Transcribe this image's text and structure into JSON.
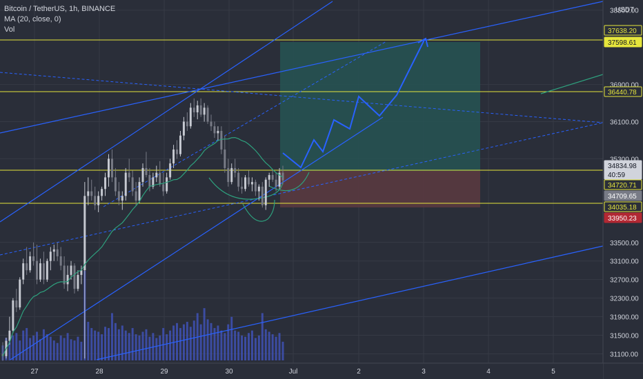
{
  "legend": {
    "symbol": "Bitcoin / TetherUS, 1h, BINANCE",
    "ma": "MA (20, close, 0)",
    "vol": "Vol"
  },
  "currency": "USDT",
  "colors": {
    "background": "#2a2e39",
    "grid": "#363a45",
    "axis_text": "#d1d4dc",
    "candle_up": "#c6c9d1",
    "candle_down": "#787b86",
    "volume": "#3f51b5",
    "ma": "#2ea17e",
    "trend_line": "#2962ff",
    "horizontal_line": "#e6e63c",
    "profit_zone": "#265453",
    "loss_zone": "#5c3a41"
  },
  "chart_data": {
    "type": "candlestick",
    "symbol": "BTCUSDT",
    "interval": "1h",
    "y_ticks": [
      38500,
      36900,
      36100,
      35300,
      33500,
      33100,
      32700,
      32300,
      31900,
      31500,
      31100
    ],
    "x_ticks": [
      "27",
      "28",
      "29",
      "30",
      "Jul",
      "2",
      "3",
      "4",
      "5"
    ],
    "ylim": [
      30900,
      38600
    ],
    "price_tags": [
      {
        "value": "37638.20",
        "style": "yellow-outline"
      },
      {
        "value": "37598.61",
        "style": "yellow-fill"
      },
      {
        "value": "36440.78",
        "style": "yellow-outline"
      },
      {
        "value": "34834.98",
        "style": "white"
      },
      {
        "value": "40:59",
        "style": "white"
      },
      {
        "value": "34720.71",
        "style": "yellow-outline"
      },
      {
        "value": "34709.65",
        "style": "grey"
      },
      {
        "value": "34035.18",
        "style": "yellow-outline"
      },
      {
        "value": "33950.23",
        "style": "red"
      }
    ],
    "horizontal_levels": [
      37598.61,
      36440.78,
      34720.71,
      34035.18
    ],
    "long_position": {
      "entry": 34720.71,
      "target": 37638.2,
      "stop": 33950.23
    },
    "candles": [
      [
        31100,
        31350,
        30950,
        31050
      ],
      [
        31050,
        31450,
        31000,
        31380
      ],
      [
        31380,
        31900,
        31300,
        31600
      ],
      [
        31600,
        32300,
        31550,
        32250
      ],
      [
        32250,
        32500,
        32000,
        32100
      ],
      [
        32100,
        32750,
        32050,
        32700
      ],
      [
        32700,
        33150,
        32600,
        33050
      ],
      [
        33050,
        33400,
        32800,
        32900
      ],
      [
        32900,
        33300,
        32850,
        33200
      ],
      [
        33200,
        33500,
        33000,
        33100
      ],
      [
        33100,
        33450,
        32600,
        32700
      ],
      [
        32700,
        33150,
        32650,
        33050
      ],
      [
        33050,
        33300,
        32600,
        32700
      ],
      [
        32700,
        33150,
        32650,
        33100
      ],
      [
        33100,
        33400,
        32900,
        33300
      ],
      [
        33300,
        33450,
        33100,
        33350
      ],
      [
        33350,
        33500,
        33100,
        33200
      ],
      [
        33200,
        33400,
        32900,
        33000
      ],
      [
        33000,
        33200,
        32500,
        32600
      ],
      [
        32600,
        33000,
        32450,
        32800
      ],
      [
        32800,
        33100,
        32700,
        33000
      ],
      [
        33000,
        33050,
        32400,
        32500
      ],
      [
        32500,
        32900,
        32450,
        32800
      ],
      [
        32800,
        33000,
        32600,
        32900
      ],
      [
        32900,
        34800,
        31000,
        34500
      ],
      [
        34500,
        34900,
        34300,
        34600
      ],
      [
        34600,
        34850,
        34400,
        34500
      ],
      [
        34500,
        34700,
        34200,
        34300
      ],
      [
        34300,
        34600,
        34150,
        34500
      ],
      [
        34500,
        34700,
        34400,
        34650
      ],
      [
        34650,
        35000,
        34500,
        34900
      ],
      [
        34900,
        35400,
        34700,
        35300
      ],
      [
        35300,
        35500,
        34800,
        34900
      ],
      [
        34900,
        35100,
        34500,
        34600
      ],
      [
        34600,
        34800,
        34300,
        34400
      ],
      [
        34400,
        34600,
        34200,
        34500
      ],
      [
        34500,
        35100,
        34400,
        35000
      ],
      [
        35000,
        35300,
        34800,
        34900
      ],
      [
        34900,
        35050,
        34500,
        34600
      ],
      [
        34600,
        34800,
        34300,
        34400
      ],
      [
        34400,
        34900,
        34350,
        34800
      ],
      [
        34800,
        35200,
        34700,
        35100
      ],
      [
        35100,
        35450,
        34900,
        34950
      ],
      [
        34950,
        35100,
        34600,
        34700
      ],
      [
        34700,
        35000,
        34650,
        34900
      ],
      [
        34900,
        35150,
        34800,
        35000
      ],
      [
        35000,
        35250,
        34700,
        34750
      ],
      [
        34750,
        35000,
        34500,
        34600
      ],
      [
        34600,
        35000,
        34550,
        34900
      ],
      [
        34900,
        35300,
        34850,
        35200
      ],
      [
        35200,
        35600,
        35100,
        35500
      ],
      [
        35500,
        35700,
        35300,
        35400
      ],
      [
        35400,
        35900,
        35350,
        35800
      ],
      [
        35800,
        36200,
        35700,
        36100
      ],
      [
        36100,
        36300,
        35900,
        36000
      ],
      [
        36000,
        36500,
        35950,
        36400
      ],
      [
        36400,
        36600,
        36200,
        36300
      ],
      [
        36300,
        36550,
        36150,
        36450
      ],
      [
        36450,
        36600,
        36200,
        36250
      ],
      [
        36250,
        36500,
        36100,
        36400
      ],
      [
        36400,
        36450,
        36050,
        36100
      ],
      [
        36100,
        36250,
        35900,
        36000
      ],
      [
        36000,
        36100,
        35750,
        35850
      ],
      [
        35850,
        36000,
        35700,
        35900
      ],
      [
        35900,
        36000,
        35400,
        35500
      ],
      [
        35500,
        35800,
        35000,
        35100
      ],
      [
        35100,
        35300,
        34700,
        34800
      ],
      [
        34800,
        35200,
        34750,
        35100
      ],
      [
        35100,
        35300,
        34900,
        35000
      ],
      [
        35000,
        35100,
        34600,
        34700
      ],
      [
        34700,
        34900,
        34550,
        34650
      ],
      [
        34650,
        34950,
        34600,
        34900
      ],
      [
        34900,
        35050,
        34700,
        34750
      ],
      [
        34750,
        34900,
        34600,
        34800
      ],
      [
        34800,
        34850,
        34500,
        34600
      ],
      [
        34600,
        34750,
        34400,
        34700
      ],
      [
        34700,
        34800,
        34250,
        34300
      ],
      [
        34300,
        34900,
        34200,
        34850
      ],
      [
        34850,
        35000,
        34700,
        34950
      ],
      [
        34950,
        35050,
        34800,
        34850
      ],
      [
        34850,
        35000,
        34600,
        34700
      ],
      [
        34700,
        35100,
        34650,
        35000
      ],
      [
        35000,
        35150,
        34750,
        34835
      ]
    ],
    "volume": [
      120,
      180,
      150,
      200,
      220,
      160,
      240,
      260,
      180,
      200,
      230,
      170,
      250,
      210,
      190,
      160,
      140,
      200,
      180,
      220,
      170,
      160,
      190,
      150,
      720,
      310,
      260,
      240,
      230,
      210,
      270,
      260,
      380,
      300,
      250,
      280,
      240,
      220,
      260,
      210,
      200,
      230,
      250,
      190,
      220,
      180,
      200,
      260,
      210,
      240,
      280,
      300,
      260,
      290,
      310,
      270,
      320,
      380,
      290,
      420,
      330,
      300,
      260,
      280,
      240,
      220,
      290,
      350,
      240,
      230,
      200,
      190,
      220,
      240,
      180,
      200,
      380,
      250,
      230,
      210,
      190,
      220,
      150
    ]
  }
}
